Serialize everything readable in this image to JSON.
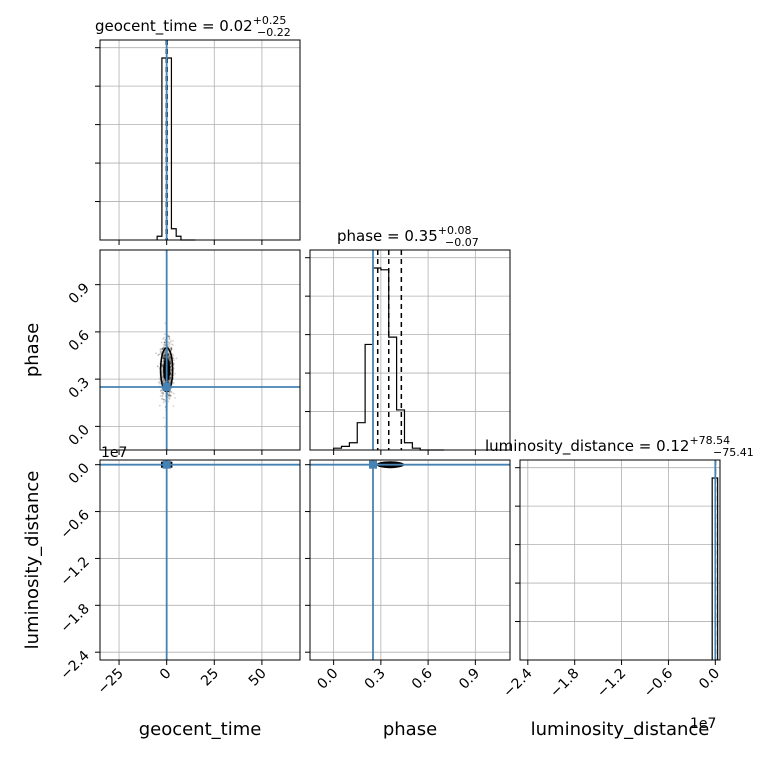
{
  "chart_data": {
    "type": "corner",
    "parameters": [
      "geocent_time",
      "phase",
      "luminosity_distance"
    ],
    "titles": {
      "geocent_time": {
        "label": "geocent_time",
        "median": "0.02",
        "plus": "+0.25",
        "minus": "−0.22"
      },
      "phase": {
        "label": "phase",
        "median": "0.35",
        "plus": "+0.08",
        "minus": "−0.07"
      },
      "luminosity_distance": {
        "label": "luminosity_distance",
        "median": "0.12",
        "plus": "+78.54",
        "minus": "−75.41"
      }
    },
    "axis_labels": {
      "x": [
        "geocent_time",
        "phase",
        "luminosity_distance"
      ],
      "y": [
        "phase",
        "luminosity_distance"
      ]
    },
    "ticks": {
      "geocent_time": {
        "values": [
          -25,
          0,
          25,
          50
        ],
        "labels": [
          "−25",
          "0",
          "25",
          "50"
        ]
      },
      "phase": {
        "values": [
          0.0,
          0.3,
          0.6,
          0.9
        ],
        "labels": [
          "0.0",
          "0.3",
          "0.6",
          "0.9"
        ]
      },
      "luminosity_distance": {
        "values": [
          -2.4,
          -1.8,
          -1.2,
          -0.6,
          0.0
        ],
        "labels": [
          "−2.4",
          "−1.8",
          "−1.2",
          "−0.6",
          "0.0"
        ]
      }
    },
    "ranges": {
      "geocent_time": [
        -35,
        70
      ],
      "phase": [
        -0.15,
        1.12
      ],
      "luminosity_distance": [
        -2.5,
        0.06
      ]
    },
    "offset_text": {
      "luminosity_distance_y": "1e7",
      "luminosity_distance_x": "1e7"
    },
    "truths": {
      "geocent_time": 0.0,
      "phase": 0.25,
      "luminosity_distance": 0.0
    },
    "quantiles": {
      "geocent_time": [
        -0.2,
        0.02,
        0.27
      ],
      "phase": [
        0.28,
        0.35,
        0.43
      ],
      "luminosity_distance": [
        -7.5e-06,
        1.2e-08,
        7.9e-06
      ]
    },
    "histograms": {
      "geocent_time": {
        "edges": [
          -5,
          -2.5,
          0,
          2.5,
          5,
          7.5,
          10,
          12.5,
          15
        ],
        "counts": [
          0.02,
          0.97,
          0.97,
          0.06,
          0.02,
          0.0,
          0.0,
          0.0
        ]
      },
      "phase": {
        "edges": [
          0.0,
          0.05,
          0.1,
          0.15,
          0.2,
          0.25,
          0.3,
          0.35,
          0.4,
          0.45,
          0.5,
          0.55,
          0.6,
          0.65,
          0.7
        ],
        "counts": [
          0.01,
          0.02,
          0.04,
          0.15,
          0.58,
          1.0,
          0.99,
          0.62,
          0.22,
          0.04,
          0.01,
          0.0,
          0.0,
          0.0
        ]
      },
      "luminosity_distance": {
        "edges": [
          -0.04,
          -0.005,
          0.03
        ],
        "counts": [
          0.97,
          0.97
        ]
      }
    },
    "grid": true,
    "legend": "none"
  }
}
